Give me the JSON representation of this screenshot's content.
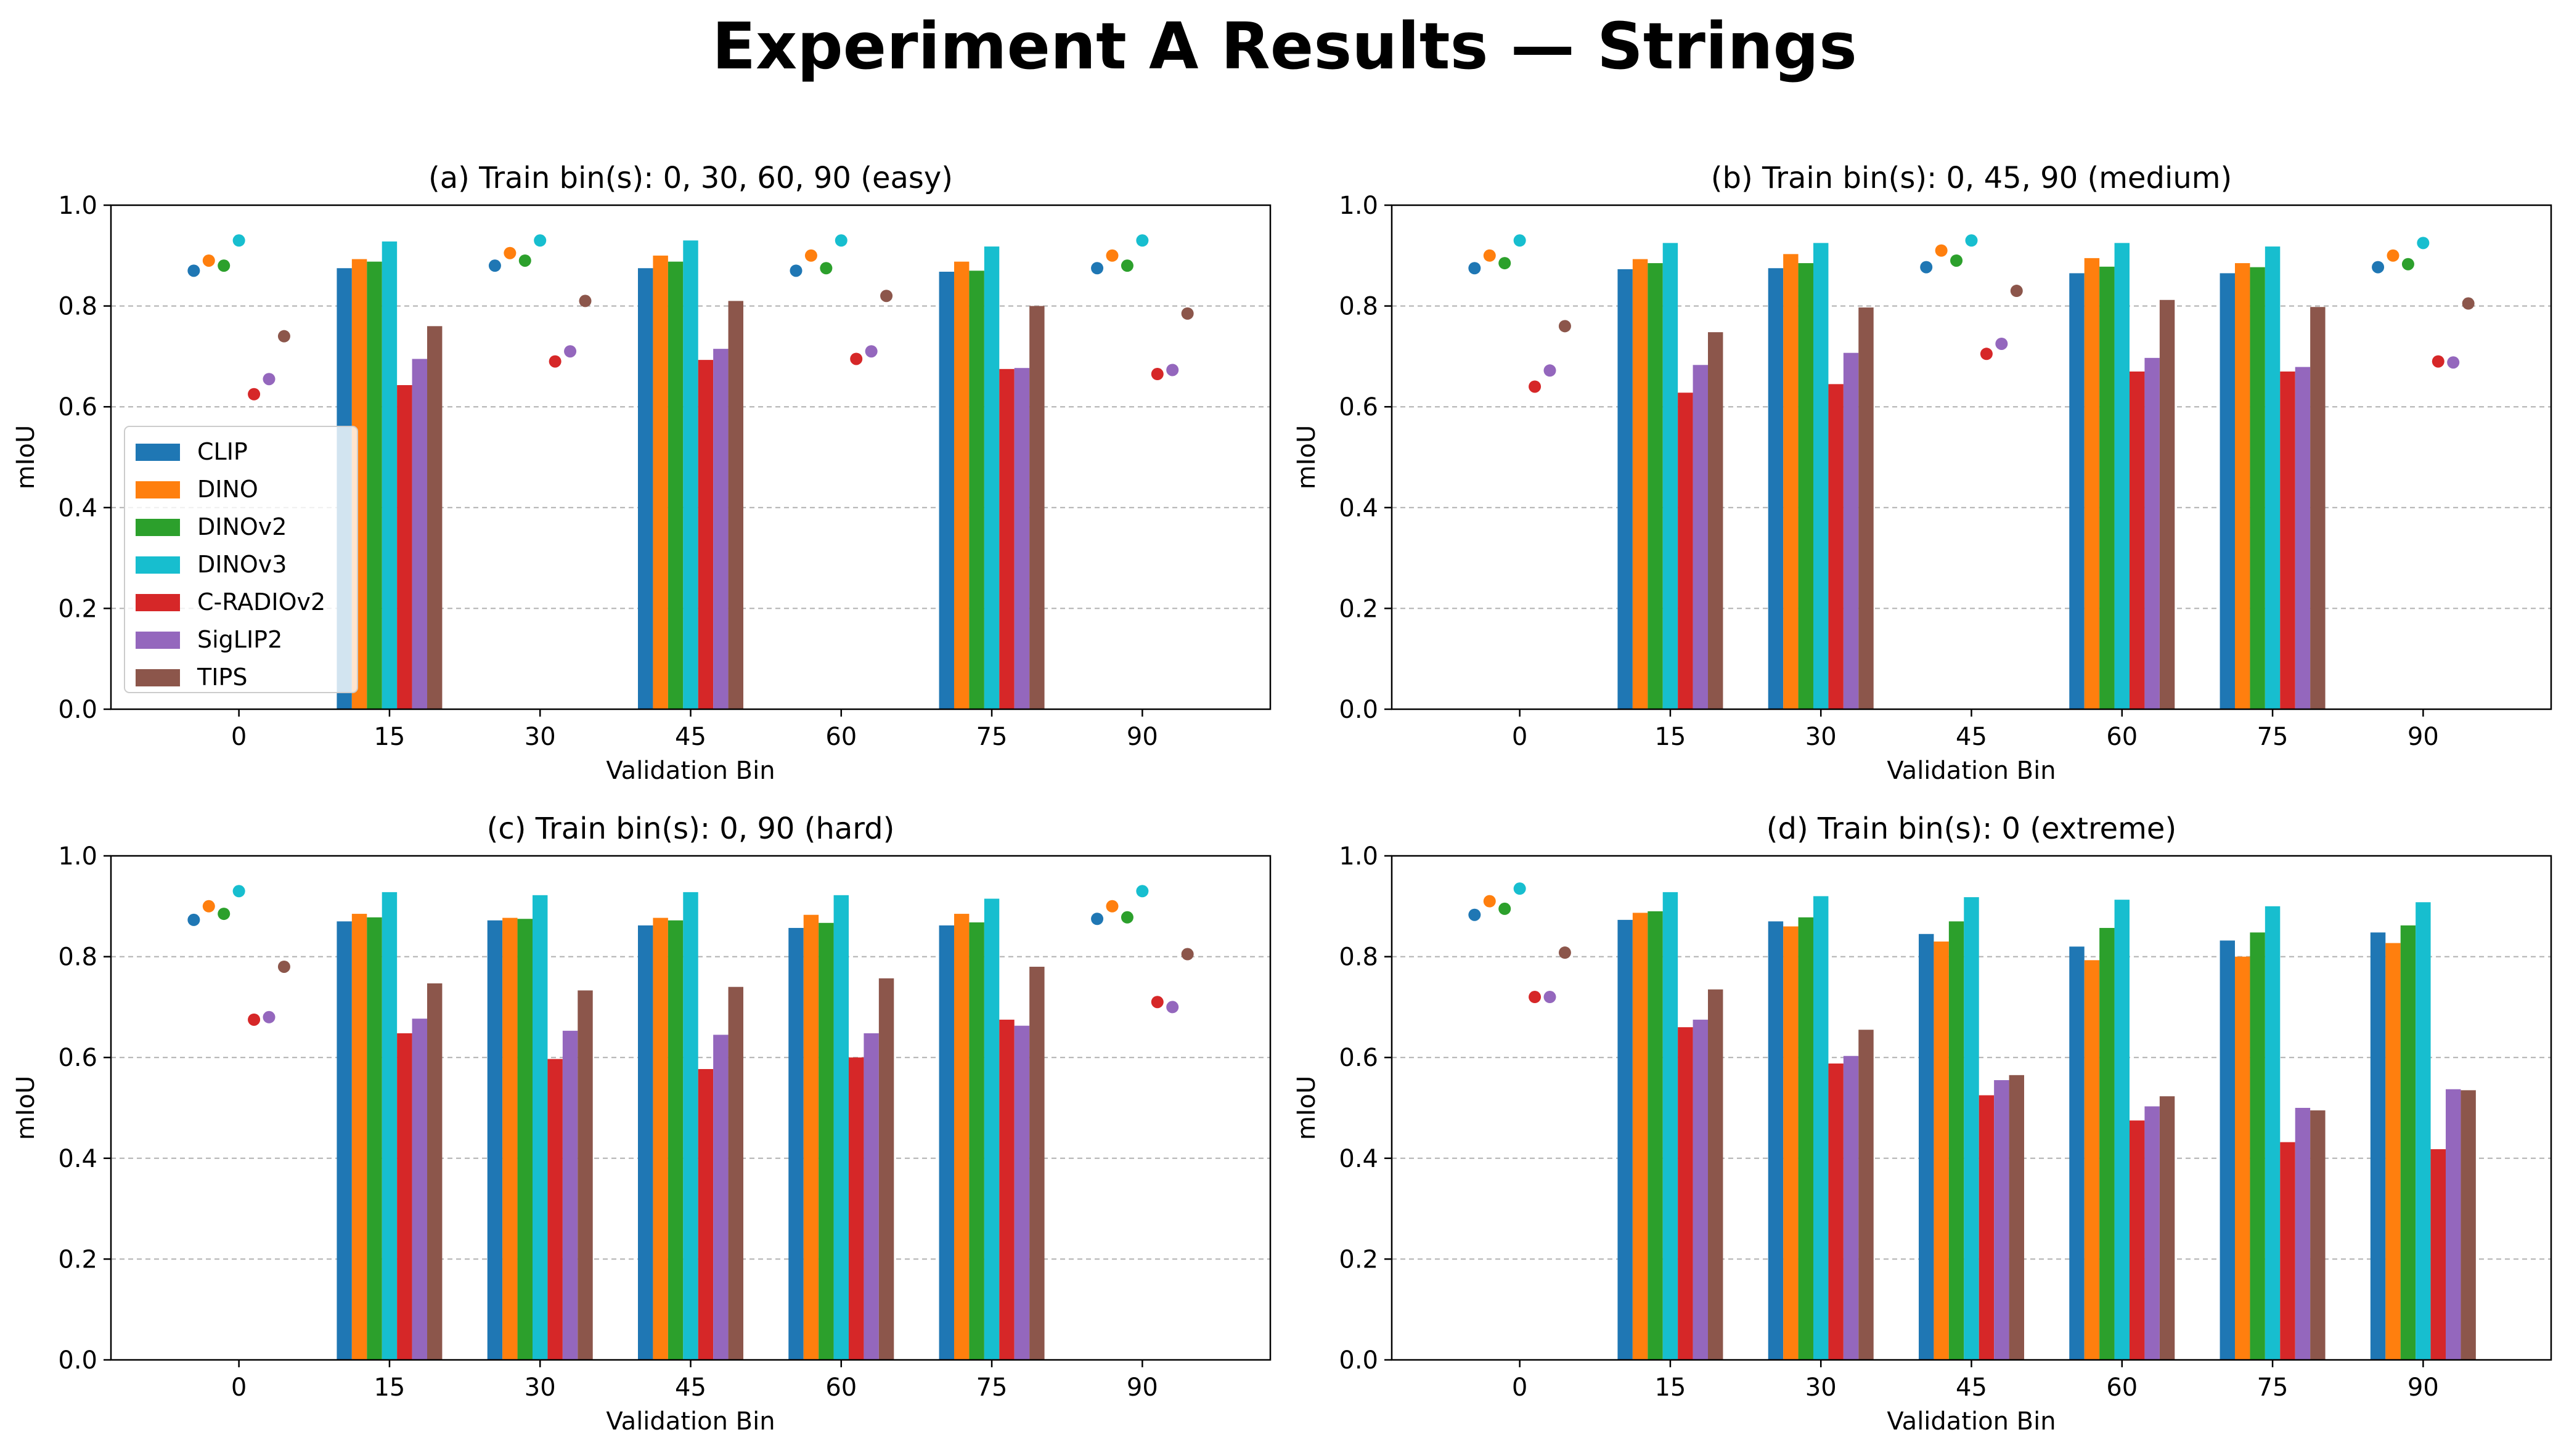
{
  "title": "Experiment A Results — Strings",
  "legend": {
    "entries": [
      "CLIP",
      "DINO",
      "DINOv2",
      "DINOv3",
      "C-RADIOv2",
      "SigLIP2",
      "TIPS"
    ],
    "placement": "center-left (panel a)"
  },
  "colors": {
    "CLIP": "#1f77b4",
    "DINO": "#ff7f0e",
    "DINOv2": "#2ca02c",
    "DINOv3": "#17becf",
    "C-RADIOv2": "#d62728",
    "SigLIP2": "#9467bd",
    "TIPS": "#8c564b"
  },
  "chart_data": [
    {
      "type": "bar",
      "title": "(a) Train bin(s): 0, 30, 60, 90 (easy)",
      "xlabel": "Validation Bin",
      "ylabel": "mIoU",
      "categories": [
        "0",
        "15",
        "30",
        "45",
        "60",
        "75",
        "90"
      ],
      "yticks": [
        "0.0",
        "0.2",
        "0.4",
        "0.6",
        "0.8",
        "1.0"
      ],
      "ylim": [
        0,
        1
      ],
      "grid": "y-dashed",
      "train_bins": [
        "0",
        "30",
        "60",
        "90"
      ],
      "series": [
        {
          "name": "CLIP",
          "values": [
            0.87,
            0.875,
            0.88,
            0.875,
            0.87,
            0.868,
            0.875
          ]
        },
        {
          "name": "DINO",
          "values": [
            0.89,
            0.893,
            0.905,
            0.9,
            0.9,
            0.888,
            0.9
          ]
        },
        {
          "name": "DINOv2",
          "values": [
            0.88,
            0.888,
            0.89,
            0.888,
            0.875,
            0.87,
            0.88
          ]
        },
        {
          "name": "DINOv3",
          "values": [
            0.93,
            0.928,
            0.93,
            0.93,
            0.93,
            0.918,
            0.93
          ]
        },
        {
          "name": "C-RADIOv2",
          "values": [
            0.625,
            0.643,
            0.69,
            0.693,
            0.695,
            0.675,
            0.665
          ]
        },
        {
          "name": "SigLIP2",
          "values": [
            0.655,
            0.695,
            0.71,
            0.715,
            0.71,
            0.677,
            0.673
          ]
        },
        {
          "name": "TIPS",
          "values": [
            0.74,
            0.76,
            0.81,
            0.81,
            0.82,
            0.8,
            0.785
          ]
        }
      ]
    },
    {
      "type": "bar",
      "title": "(b) Train bin(s): 0, 45, 90 (medium)",
      "xlabel": "Validation Bin",
      "ylabel": "mIoU",
      "categories": [
        "0",
        "15",
        "30",
        "45",
        "60",
        "75",
        "90"
      ],
      "yticks": [
        "0.0",
        "0.2",
        "0.4",
        "0.6",
        "0.8",
        "1.0"
      ],
      "ylim": [
        0,
        1
      ],
      "grid": "y-dashed",
      "train_bins": [
        "0",
        "45",
        "90"
      ],
      "series": [
        {
          "name": "CLIP",
          "values": [
            0.875,
            0.873,
            0.875,
            0.877,
            0.865,
            0.865,
            0.877
          ]
        },
        {
          "name": "DINO",
          "values": [
            0.9,
            0.893,
            0.903,
            0.91,
            0.895,
            0.885,
            0.9
          ]
        },
        {
          "name": "DINOv2",
          "values": [
            0.885,
            0.885,
            0.885,
            0.89,
            0.878,
            0.877,
            0.883
          ]
        },
        {
          "name": "DINOv3",
          "values": [
            0.93,
            0.925,
            0.925,
            0.93,
            0.925,
            0.918,
            0.925
          ]
        },
        {
          "name": "C-RADIOv2",
          "values": [
            0.64,
            0.628,
            0.645,
            0.705,
            0.67,
            0.67,
            0.69
          ]
        },
        {
          "name": "SigLIP2",
          "values": [
            0.672,
            0.683,
            0.707,
            0.725,
            0.697,
            0.679,
            0.688
          ]
        },
        {
          "name": "TIPS",
          "values": [
            0.76,
            0.748,
            0.797,
            0.83,
            0.812,
            0.798,
            0.805
          ]
        }
      ]
    },
    {
      "type": "bar",
      "title": "(c) Train bin(s): 0, 90 (hard)",
      "xlabel": "Validation Bin",
      "ylabel": "mIoU",
      "categories": [
        "0",
        "15",
        "30",
        "45",
        "60",
        "75",
        "90"
      ],
      "yticks": [
        "0.0",
        "0.2",
        "0.4",
        "0.6",
        "0.8",
        "1.0"
      ],
      "ylim": [
        0,
        1
      ],
      "grid": "y-dashed",
      "train_bins": [
        "0",
        "90"
      ],
      "series": [
        {
          "name": "CLIP",
          "values": [
            0.873,
            0.87,
            0.872,
            0.862,
            0.857,
            0.862,
            0.875
          ]
        },
        {
          "name": "DINO",
          "values": [
            0.9,
            0.885,
            0.877,
            0.877,
            0.883,
            0.885,
            0.9
          ]
        },
        {
          "name": "DINOv2",
          "values": [
            0.885,
            0.878,
            0.875,
            0.872,
            0.867,
            0.868,
            0.878
          ]
        },
        {
          "name": "DINOv3",
          "values": [
            0.93,
            0.928,
            0.922,
            0.928,
            0.922,
            0.915,
            0.93
          ]
        },
        {
          "name": "C-RADIOv2",
          "values": [
            0.675,
            0.648,
            0.597,
            0.577,
            0.6,
            0.675,
            0.71
          ]
        },
        {
          "name": "SigLIP2",
          "values": [
            0.68,
            0.677,
            0.653,
            0.645,
            0.648,
            0.663,
            0.7
          ]
        },
        {
          "name": "TIPS",
          "values": [
            0.78,
            0.747,
            0.733,
            0.74,
            0.757,
            0.78,
            0.805
          ]
        }
      ]
    },
    {
      "type": "bar",
      "title": "(d) Train bin(s): 0 (extreme)",
      "xlabel": "Validation Bin",
      "ylabel": "mIoU",
      "categories": [
        "0",
        "15",
        "30",
        "45",
        "60",
        "75",
        "90"
      ],
      "yticks": [
        "0.0",
        "0.2",
        "0.4",
        "0.6",
        "0.8",
        "1.0"
      ],
      "ylim": [
        0,
        1
      ],
      "grid": "y-dashed",
      "train_bins": [
        "0"
      ],
      "series": [
        {
          "name": "CLIP",
          "values": [
            0.883,
            0.873,
            0.87,
            0.845,
            0.82,
            0.832,
            0.848
          ]
        },
        {
          "name": "DINO",
          "values": [
            0.91,
            0.887,
            0.86,
            0.83,
            0.793,
            0.8,
            0.827
          ]
        },
        {
          "name": "DINOv2",
          "values": [
            0.895,
            0.89,
            0.878,
            0.87,
            0.857,
            0.848,
            0.862
          ]
        },
        {
          "name": "DINOv3",
          "values": [
            0.935,
            0.928,
            0.92,
            0.918,
            0.913,
            0.9,
            0.908
          ]
        },
        {
          "name": "C-RADIOv2",
          "values": [
            0.72,
            0.66,
            0.588,
            0.525,
            0.475,
            0.432,
            0.418
          ]
        },
        {
          "name": "SigLIP2",
          "values": [
            0.72,
            0.675,
            0.603,
            0.555,
            0.503,
            0.5,
            0.537
          ]
        },
        {
          "name": "TIPS",
          "values": [
            0.808,
            0.735,
            0.655,
            0.565,
            0.523,
            0.495,
            0.535
          ]
        }
      ]
    }
  ]
}
